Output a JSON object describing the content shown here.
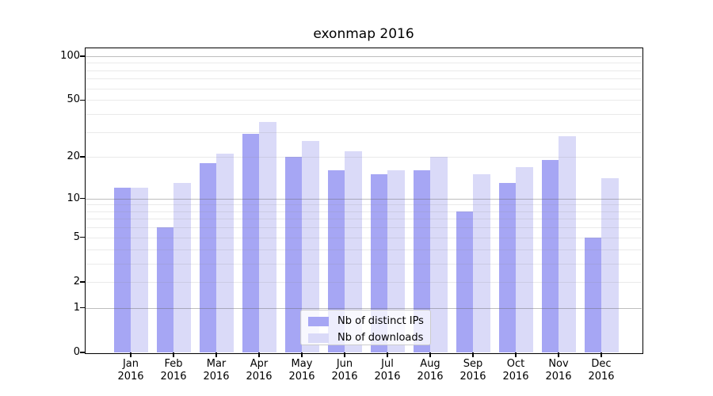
{
  "chart_data": {
    "type": "bar",
    "title": "exonmap 2016",
    "categories": [
      "Jan 2016",
      "Feb 2016",
      "Mar 2016",
      "Apr 2016",
      "May 2016",
      "Jun 2016",
      "Jul 2016",
      "Aug 2016",
      "Sep 2016",
      "Oct 2016",
      "Nov 2016",
      "Dec 2016"
    ],
    "series": [
      {
        "name": "Nb of distinct IPs",
        "color": "#a6a6f4",
        "values": [
          12,
          6,
          18,
          29,
          20,
          16,
          15,
          16,
          8,
          13,
          19,
          5
        ]
      },
      {
        "name": "Nb of downloads",
        "color": "#dadaf8",
        "values": [
          12,
          13,
          21,
          35,
          26,
          22,
          16,
          20,
          15,
          17,
          28,
          14
        ]
      }
    ],
    "xlabel": "",
    "ylabel": "",
    "yscale": "log1p",
    "ylim": [
      0,
      113
    ],
    "yticks": [
      0,
      1,
      2,
      5,
      10,
      20,
      50,
      100
    ],
    "ytick_labels": [
      "0",
      "1",
      "2",
      "5",
      "10",
      "20",
      "50",
      "100"
    ],
    "major_grid_values": [
      1,
      10,
      100
    ],
    "minor_grid_values": [
      2,
      3,
      4,
      5,
      6,
      7,
      8,
      9,
      20,
      30,
      40,
      50,
      60,
      70,
      80,
      90
    ],
    "grid": true,
    "legend_position": "lower center"
  }
}
